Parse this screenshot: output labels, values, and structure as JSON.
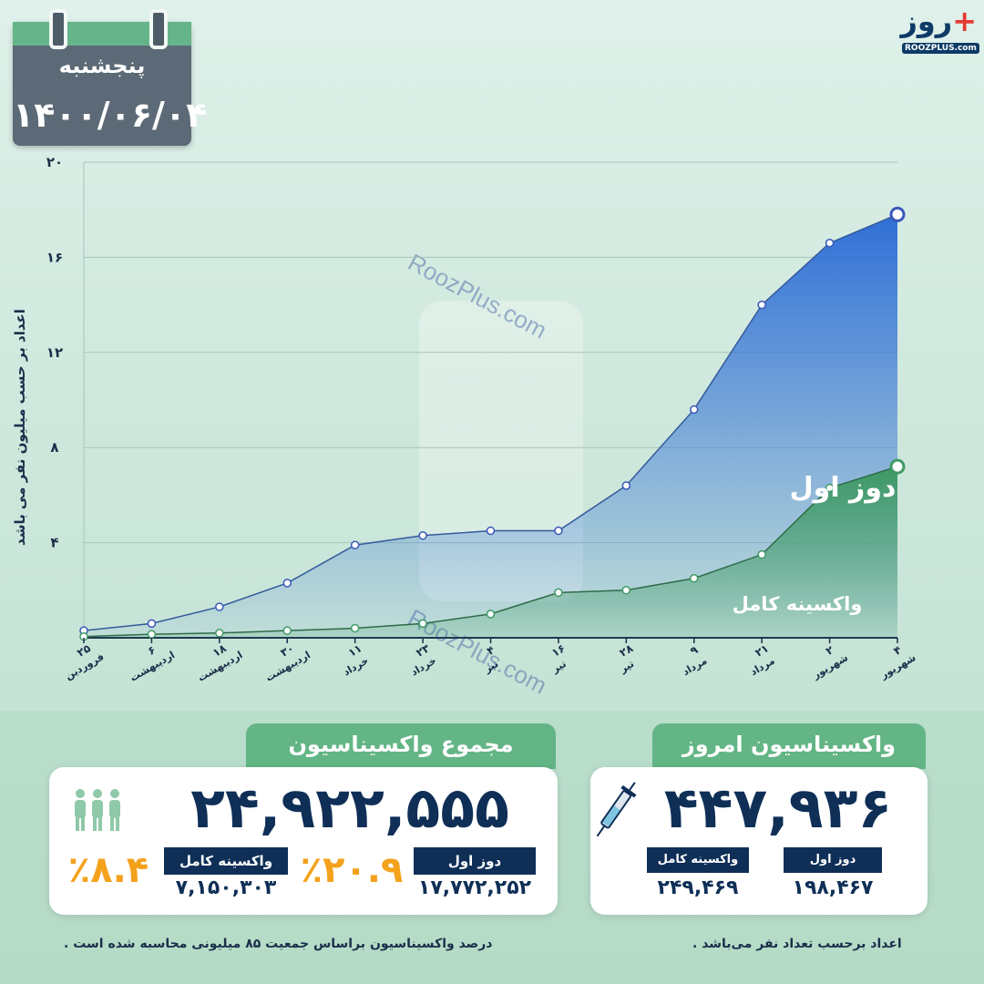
{
  "calendar": {
    "day": "پنجشنبه",
    "date": "۱۴۰۰/۰۶/۰۴"
  },
  "logo": {
    "word": "روز",
    "plus": "+",
    "url": "ROOZPLUS.com"
  },
  "watermark": "RoozPlus.com",
  "colors": {
    "first_dose": "#2f6fd6",
    "full": "#3f9a65",
    "navy": "#0f2f57",
    "accent": "#f4a11c",
    "tab_green": "#63b585"
  },
  "chart_data": {
    "type": "area",
    "ylabel": "اعداد بر حسب میلیون نفر می باشد",
    "ylim": [
      0,
      20
    ],
    "yticks": [
      4,
      8,
      12,
      16,
      20
    ],
    "ytick_labels": [
      "۴",
      "۸",
      "۱۲",
      "۱۶",
      "۲۰"
    ],
    "x_labels": [
      [
        "۲۵",
        "فروردین"
      ],
      [
        "۶",
        "اردیبهشت"
      ],
      [
        "۱۸",
        "اردیبهشت"
      ],
      [
        "۳۰",
        "اردیبهشت"
      ],
      [
        "۱۱",
        "خرداد"
      ],
      [
        "۲۳",
        "خرداد"
      ],
      [
        "۴",
        "تیر"
      ],
      [
        "۱۶",
        "تیر"
      ],
      [
        "۲۸",
        "تیر"
      ],
      [
        "۹",
        "مرداد"
      ],
      [
        "۲۱",
        "مرداد"
      ],
      [
        "۲",
        "شهریور"
      ],
      [
        "۴",
        "شهریور"
      ]
    ],
    "series": [
      {
        "name": "دوز اول",
        "values": [
          0.3,
          0.6,
          1.3,
          2.3,
          3.9,
          4.3,
          4.5,
          4.5,
          6.4,
          9.6,
          14.0,
          16.6,
          17.8
        ]
      },
      {
        "name": "واکسینه کامل",
        "values": [
          0.05,
          0.15,
          0.2,
          0.3,
          0.4,
          0.6,
          1.0,
          1.9,
          2.0,
          2.5,
          3.5,
          6.3,
          7.2
        ]
      }
    ]
  },
  "today": {
    "title": "واکسیناسیون امروز",
    "total": "۴۴۷,۹۳۶",
    "first_label": "دوز اول",
    "first_value": "۱۹۸,۴۶۷",
    "full_label": "واکسینه کامل",
    "full_value": "۲۴۹,۴۶۹",
    "icon": "syringe-icon"
  },
  "overall": {
    "title": "مجموع واکسیناسیون",
    "total": "۲۴,۹۲۲,۵۵۵",
    "first_label": "دوز اول",
    "first_value": "۱۷,۷۷۲,۲۵۲",
    "first_pct": "٪۲۰.۹",
    "full_label": "واکسینه کامل",
    "full_value": "۷,۱۵۰,۳۰۳",
    "full_pct": "٪۸.۴",
    "icon": "people-icon"
  },
  "notes": {
    "left": "درصد واکسیناسیون براساس جمعیت ۸۵ میلیونی محاسبه شده است .",
    "right": "اعداد برحسب تعداد نفر می‌باشد ."
  }
}
